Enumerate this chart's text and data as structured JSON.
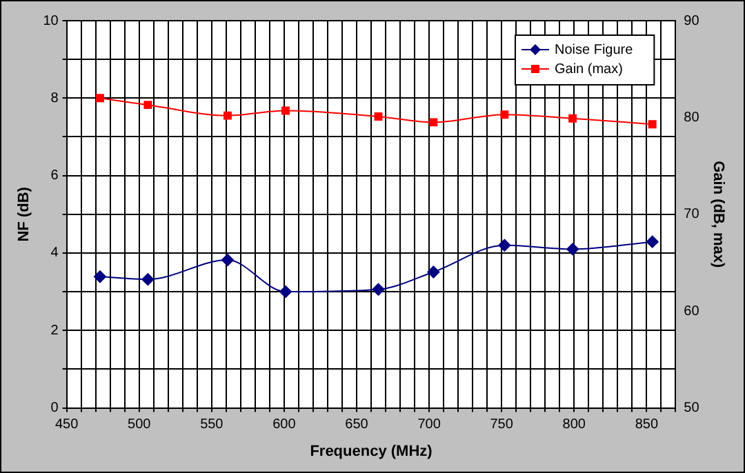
{
  "chart_data": {
    "type": "line",
    "xlabel": "Frequency (MHz)",
    "ylabel": "NF (dB)",
    "y2label": "Gain (dB, max)",
    "xlim": [
      450,
      870
    ],
    "xticks": [
      450,
      {
        "value": 460,
        "label": null
      },
      {
        "value": 470,
        "label": null
      },
      {
        "value": 480,
        "label": null
      },
      {
        "value": 490,
        "label": null
      },
      500,
      {
        "value": 510,
        "label": null
      },
      {
        "value": 520,
        "label": null
      },
      {
        "value": 530,
        "label": null
      },
      {
        "value": 540,
        "label": null
      },
      550,
      {
        "value": 560,
        "label": null
      },
      {
        "value": 570,
        "label": null
      },
      {
        "value": 580,
        "label": null
      },
      {
        "value": 590,
        "label": null
      },
      600,
      {
        "value": 610,
        "label": null
      },
      {
        "value": 620,
        "label": null
      },
      {
        "value": 630,
        "label": null
      },
      {
        "value": 640,
        "label": null
      },
      650,
      {
        "value": 660,
        "label": null
      },
      {
        "value": 670,
        "label": null
      },
      {
        "value": 680,
        "label": null
      },
      {
        "value": 690,
        "label": null
      },
      700,
      {
        "value": 710,
        "label": null
      },
      {
        "value": 720,
        "label": null
      },
      {
        "value": 730,
        "label": null
      },
      {
        "value": 740,
        "label": null
      },
      750,
      {
        "value": 760,
        "label": null
      },
      {
        "value": 770,
        "label": null
      },
      {
        "value": 780,
        "label": null
      },
      {
        "value": 790,
        "label": null
      },
      800,
      {
        "value": 810,
        "label": null
      },
      {
        "value": 820,
        "label": null
      },
      {
        "value": 830,
        "label": null
      },
      {
        "value": 840,
        "label": null
      },
      850,
      {
        "value": 860,
        "label": null
      },
      {
        "value": 870,
        "label": null
      }
    ],
    "ylim": [
      0,
      10
    ],
    "yticks": [
      0,
      {
        "value": 1,
        "label": null
      },
      2,
      {
        "value": 3,
        "label": null
      },
      4,
      {
        "value": 5,
        "label": null
      },
      6,
      {
        "value": 7,
        "label": null
      },
      8,
      {
        "value": 9,
        "label": null
      },
      10
    ],
    "y2lim": [
      50,
      90
    ],
    "y2ticks": [
      50,
      60,
      70,
      80,
      90
    ],
    "grid": true,
    "legend": "top right",
    "x": [
      473,
      506,
      561,
      601,
      665,
      703,
      752,
      799,
      854
    ],
    "series": [
      {
        "name": "Noise Figure",
        "color": "#000080",
        "marker": "diamond",
        "values": [
          3.39,
          3.32,
          3.82,
          3.0,
          3.06,
          3.51,
          4.2,
          4.1,
          4.29
        ]
      },
      {
        "name": "Gain (max)",
        "color": "#ff0000",
        "marker": "square",
        "axis": "y2",
        "values": [
          82.0,
          81.3,
          80.2,
          80.7,
          80.1,
          79.5,
          80.3,
          79.9,
          79.3
        ]
      }
    ]
  }
}
